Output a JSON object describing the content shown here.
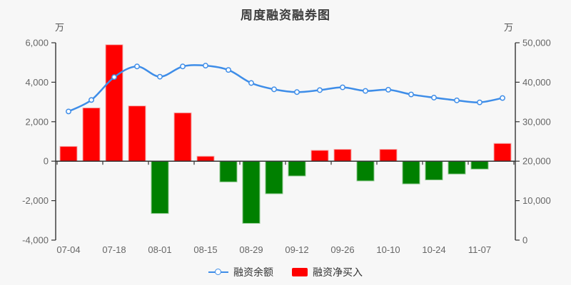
{
  "colors": {
    "background": "#f7f7f7",
    "line_blue": "#3e8de8",
    "bar_positive_red": "#ff0000",
    "bar_positive_border": "#f5b1b1",
    "bar_negative_green": "#008000",
    "bar_negative_border": "#8cc98c",
    "axis_line": "#333333",
    "label_gray": "#666666",
    "title_gray": "#3f3f3f"
  },
  "chart_data": {
    "type": "combo",
    "title": "周度融资融券图",
    "categories": [
      "07-04",
      "",
      "07-18",
      "",
      "08-01",
      "",
      "08-15",
      "",
      "08-29",
      "",
      "09-12",
      "",
      "09-26",
      "",
      "10-10",
      "",
      "10-24",
      "",
      "11-07",
      ""
    ],
    "x_tick_labels": [
      "07-04",
      "07-18",
      "08-01",
      "08-15",
      "08-29",
      "09-12",
      "09-26",
      "10-10",
      "10-24",
      "11-07"
    ],
    "series": [
      {
        "name": "融资余额",
        "type": "line",
        "axis": "right",
        "color": "#3e8de8",
        "marker": "hollow-circle",
        "values": [
          32600,
          35500,
          41300,
          44000,
          41400,
          44000,
          44200,
          43100,
          39800,
          38200,
          37500,
          38000,
          38700,
          37800,
          38100,
          36900,
          36100,
          35400,
          34900,
          36000
        ]
      },
      {
        "name": "融资净买入",
        "type": "bar",
        "axis": "left",
        "color_positive": "#ff0000",
        "color_negative": "#008000",
        "values": [
          750,
          2700,
          5900,
          2800,
          -2650,
          2450,
          250,
          -1050,
          -3150,
          -1650,
          -750,
          550,
          600,
          -1000,
          600,
          -1150,
          -950,
          -650,
          -400,
          900
        ]
      }
    ],
    "axis_left": {
      "unit": "万",
      "min": -4000,
      "max": 6000,
      "tick_values": [
        6000,
        4000,
        2000,
        0,
        -2000,
        -4000
      ],
      "tick_labels": [
        "6,000",
        "4,000",
        "2,000",
        "0",
        "-2,000",
        "-4,000"
      ]
    },
    "axis_right": {
      "unit": "万",
      "min": 0,
      "max": 50000,
      "tick_values": [
        50000,
        40000,
        30000,
        20000,
        10000,
        0
      ],
      "tick_labels": [
        "50,000",
        "40,000",
        "30,000",
        "20,000",
        "10,000",
        "0"
      ]
    },
    "grid": false,
    "legend_position": "bottom"
  }
}
